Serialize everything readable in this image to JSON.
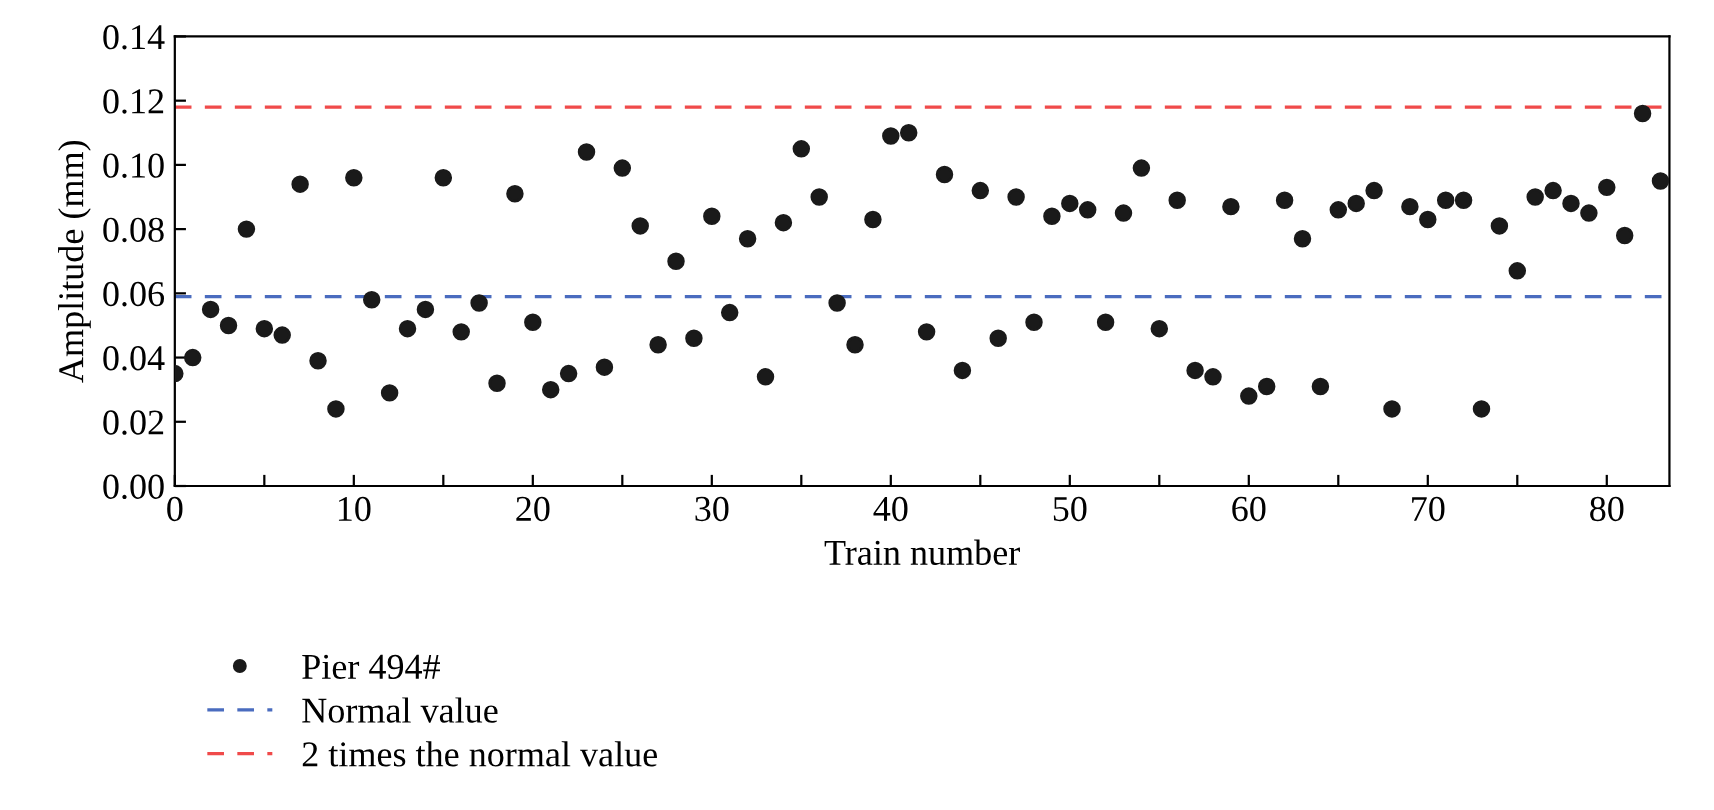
{
  "chart_data": {
    "type": "scatter",
    "xlabel": "Train number",
    "ylabel": "Amplitude (mm)",
    "x": [
      0,
      1,
      2,
      3,
      4,
      5,
      6,
      7,
      8,
      9,
      10,
      11,
      12,
      13,
      14,
      15,
      16,
      17,
      18,
      19,
      20,
      21,
      22,
      23,
      24,
      25,
      26,
      27,
      28,
      29,
      30,
      31,
      32,
      33,
      34,
      35,
      36,
      37,
      38,
      39,
      40,
      41,
      42,
      43,
      44,
      45,
      46,
      47,
      48,
      49,
      50,
      51,
      52,
      53,
      54,
      55,
      56,
      57,
      58,
      59,
      60,
      61,
      62,
      63,
      64,
      65,
      66,
      67,
      68,
      69,
      70,
      71,
      72,
      73,
      74,
      75,
      76,
      77,
      78,
      79,
      80,
      81,
      82,
      83
    ],
    "series": [
      {
        "name": "Pier 494#",
        "color": "#1a1a1a",
        "values": [
          0.035,
          0.04,
          0.055,
          0.05,
          0.08,
          0.049,
          0.047,
          0.094,
          0.039,
          0.024,
          0.096,
          0.058,
          0.029,
          0.049,
          0.055,
          0.096,
          0.048,
          0.057,
          0.032,
          0.091,
          0.051,
          0.03,
          0.035,
          0.104,
          0.037,
          0.099,
          0.081,
          0.044,
          0.07,
          0.046,
          0.084,
          0.054,
          0.077,
          0.034,
          0.082,
          0.105,
          0.09,
          0.057,
          0.044,
          0.083,
          0.109,
          0.11,
          0.048,
          0.097,
          0.036,
          0.092,
          0.046,
          0.09,
          0.051,
          0.084,
          0.088,
          0.086,
          0.051,
          0.085,
          0.099,
          0.049,
          0.089,
          0.036,
          0.034,
          0.087,
          0.028,
          0.031,
          0.089,
          0.077,
          0.031,
          0.086,
          0.088,
          0.092,
          0.024,
          0.087,
          0.083,
          0.089,
          0.089,
          0.024,
          0.081,
          0.067,
          0.09,
          0.092,
          0.088,
          0.085,
          0.093,
          0.078,
          0.116,
          0.095
        ]
      }
    ],
    "marker": "circle",
    "ref_lines": [
      {
        "axis": "y",
        "value": 0.059,
        "label": "Normal value",
        "color": "#4a6cbf",
        "line_style": "dashed"
      },
      {
        "axis": "y",
        "value": 0.118,
        "label": "2 times the normal value",
        "color": "#f04a4a",
        "line_style": "dashed"
      }
    ],
    "xlim": [
      0,
      83.5
    ],
    "xticks": [
      0,
      {
        "value": 5,
        "label": null
      },
      10,
      {
        "value": 15,
        "label": null
      },
      20,
      {
        "value": 25,
        "label": null
      },
      30,
      {
        "value": 35,
        "label": null
      },
      40,
      {
        "value": 45,
        "label": null
      },
      50,
      {
        "value": 55,
        "label": null
      },
      60,
      {
        "value": 65,
        "label": null
      },
      70,
      {
        "value": 75,
        "label": null
      },
      80
    ],
    "ylim": [
      0,
      0.14
    ],
    "yticks": [
      {
        "value": 0,
        "label": "0.00"
      },
      {
        "value": 0.02,
        "label": "0.02"
      },
      {
        "value": 0.04,
        "label": "0.04"
      },
      {
        "value": 0.06,
        "label": "0.06"
      },
      {
        "value": 0.08,
        "label": "0.08"
      },
      {
        "value": 0.1,
        "label": "0.10"
      },
      {
        "value": 0.12,
        "label": "0.12"
      },
      {
        "value": 0.14,
        "label": "0.14"
      }
    ],
    "grid": false,
    "legend": "bottom left"
  }
}
